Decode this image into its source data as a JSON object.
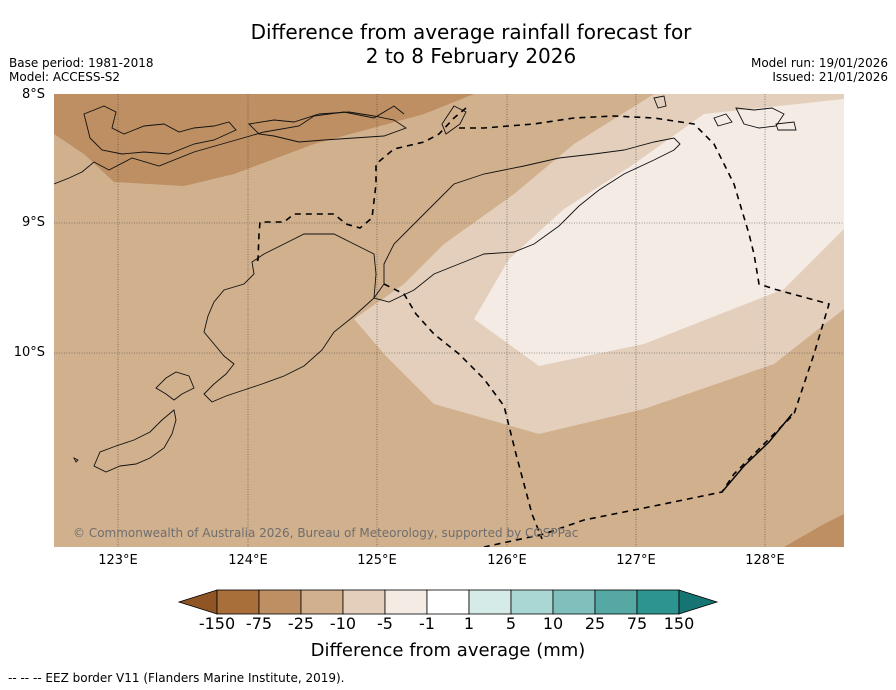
{
  "header": {
    "title_line1": "Difference from average rainfall forecast for",
    "title_line2": "2 to 8 February 2026",
    "base_period": "Base period: 1981-2018",
    "model": "Model: ACCESS-S2",
    "model_run": "Model run: 19/01/2026",
    "issued": "Issued: 21/01/2026"
  },
  "map": {
    "lat_labels": [
      "8°S",
      "9°S",
      "10°S"
    ],
    "lon_labels": [
      "123°E",
      "124°E",
      "125°E",
      "126°E",
      "127°E",
      "128°E"
    ],
    "copyright": "© Commonwealth of Australia 2026, Bureau of Meteorology, supported by COSPPac",
    "border_line_style": "dashed",
    "border_note": "--  --  -- EEZ border V11 (Flanders Marine Institute, 2019)."
  },
  "legend": {
    "title": "Difference from average (mm)",
    "tick_labels": [
      "-150",
      "-75",
      "-25",
      "-10",
      "-5",
      "-1",
      "1",
      "5",
      "10",
      "25",
      "75",
      "150"
    ],
    "colors": [
      "#8f5524",
      "#a86f3b",
      "#bd8f62",
      "#d1b08d",
      "#e3cfbb",
      "#f4ebe5",
      "#ffffff",
      "#d5ebe8",
      "#aad7d3",
      "#7fc0bc",
      "#55a8a4",
      "#2e948f",
      "#167572"
    ]
  }
}
